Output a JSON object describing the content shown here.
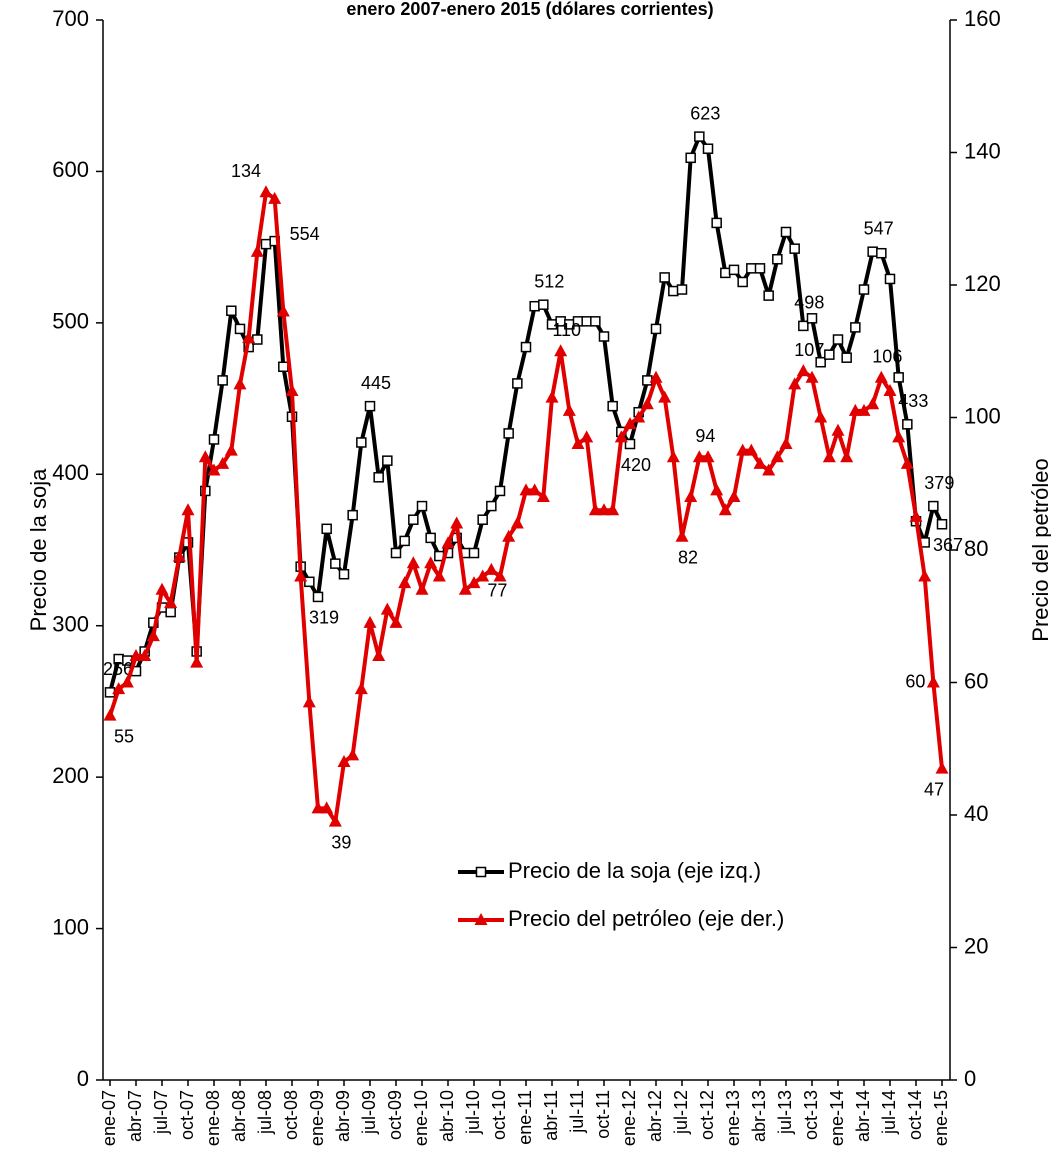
{
  "chart_data": {
    "type": "line",
    "title": "enero 2007-enero 2015 (dólares corrientes)",
    "y_label": "Precio de la soja",
    "y2_label": "Precio del petróleo",
    "categories": [
      "ene-07",
      null,
      null,
      "abr-07",
      null,
      null,
      "jul-07",
      null,
      null,
      "oct-07",
      null,
      null,
      "ene-08",
      null,
      null,
      "abr-08",
      null,
      null,
      "jul-08",
      null,
      null,
      "oct-08",
      null,
      null,
      "ene-09",
      null,
      null,
      "abr-09",
      null,
      null,
      "jul-09",
      null,
      null,
      "oct-09",
      null,
      null,
      "ene-10",
      null,
      null,
      "abr-10",
      null,
      null,
      "jul-10",
      null,
      null,
      "oct-10",
      null,
      null,
      "ene-11",
      null,
      null,
      "abr-11",
      null,
      null,
      "jul-11",
      null,
      null,
      "oct-11",
      null,
      null,
      "ene-12",
      null,
      null,
      "abr-12",
      null,
      null,
      "jul-12",
      null,
      null,
      "oct-12",
      null,
      null,
      "ene-13",
      null,
      null,
      "abr-13",
      null,
      null,
      "jul-13",
      null,
      null,
      "oct-13",
      null,
      null,
      "ene-14",
      null,
      null,
      "abr-14",
      null,
      null,
      "jul-14",
      null,
      null,
      "oct-14",
      null,
      null,
      "ene-15"
    ],
    "ylim": [
      0,
      700
    ],
    "yticks": [
      0,
      100,
      200,
      300,
      400,
      500,
      600,
      700
    ],
    "y2lim": [
      0,
      160
    ],
    "y2ticks": [
      0,
      20,
      40,
      60,
      80,
      100,
      120,
      140,
      160
    ],
    "legend": "center",
    "series": [
      {
        "name": "Precio de la soja (eje izq.)",
        "color": "#000000",
        "marker": "square",
        "data_labels": [
          0,
          19,
          24,
          30,
          50,
          60,
          68,
          80,
          88,
          92,
          95,
          96
        ],
        "values": [
          256,
          278,
          277,
          270,
          283,
          302,
          312,
          309,
          345,
          355,
          283,
          389,
          423,
          462,
          508,
          496,
          484,
          489,
          552,
          554,
          471,
          438,
          339,
          329,
          319,
          364,
          341,
          334,
          373,
          421,
          445,
          398,
          409,
          348,
          356,
          370,
          379,
          358,
          346,
          348,
          358,
          348,
          348,
          370,
          379,
          389,
          427,
          460,
          484,
          511,
          512,
          499,
          501,
          499,
          501,
          501,
          501,
          491,
          445,
          428,
          420,
          441,
          462,
          496,
          530,
          521,
          522,
          609,
          623,
          615,
          566,
          533,
          535,
          527,
          536,
          536,
          518,
          542,
          560,
          549,
          498,
          503,
          474,
          479,
          489,
          477,
          497,
          522,
          547,
          546,
          529,
          464,
          433,
          369,
          355,
          379,
          367
        ]
      },
      {
        "name": "Precio del petróleo (eje der.)",
        "color": "#e00000",
        "marker": "triangle",
        "axis": "y2",
        "data_labels": [
          0,
          18,
          26,
          44,
          52,
          66,
          68,
          80,
          89,
          95,
          96
        ],
        "values": [
          55,
          59,
          60,
          64,
          64,
          67,
          74,
          72,
          79,
          86,
          63,
          94,
          92,
          93,
          95,
          105,
          112,
          125,
          134,
          133,
          116,
          104,
          76,
          57,
          41,
          41,
          39,
          48,
          49,
          59,
          69,
          64,
          71,
          69,
          75,
          78,
          74,
          78,
          76,
          81,
          84,
          74,
          75,
          76,
          77,
          76,
          82,
          84,
          89,
          89,
          88,
          103,
          110,
          101,
          96,
          97,
          86,
          86,
          86,
          97,
          99,
          100,
          102,
          106,
          103,
          94,
          82,
          88,
          94,
          94,
          89,
          86,
          88,
          95,
          95,
          93,
          92,
          94,
          96,
          105,
          107,
          106,
          100,
          94,
          98,
          94,
          101,
          101,
          102,
          106,
          104,
          97,
          93,
          85,
          76,
          60,
          47
        ]
      }
    ]
  }
}
